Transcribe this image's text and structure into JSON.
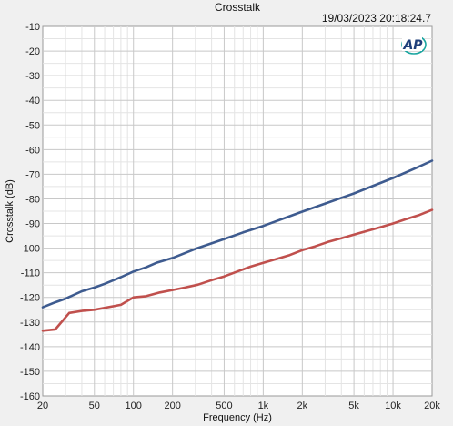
{
  "chart_data": {
    "type": "line",
    "title": "Crosstalk",
    "timestamp": "19/03/2023 20:18:24.7",
    "logo_text": "AP",
    "xlabel": "Frequency (Hz)",
    "ylabel": "Crosstalk (dB)",
    "x_scale": "log",
    "xlim": [
      20,
      20000
    ],
    "ylim": [
      -160,
      -10
    ],
    "x_ticks": [
      20,
      50,
      100,
      200,
      500,
      1000,
      2000,
      5000,
      10000,
      20000
    ],
    "x_tick_labels": [
      "20",
      "50",
      "100",
      "200",
      "500",
      "1k",
      "2k",
      "5k",
      "10k",
      "20k"
    ],
    "y_ticks": [
      -10,
      -20,
      -30,
      -40,
      -50,
      -60,
      -70,
      -80,
      -90,
      -100,
      -110,
      -120,
      -130,
      -140,
      -150,
      -160
    ],
    "y_tick_labels": [
      "-10",
      "-20",
      "-30",
      "-40",
      "-50",
      "-60",
      "-70",
      "-80",
      "-90",
      "-100",
      "-110",
      "-120",
      "-130",
      "-140",
      "-150",
      "-160"
    ],
    "grid": true,
    "series": [
      {
        "color": "#3e5b8f",
        "x": [
          20,
          25,
          30,
          40,
          50,
          60,
          80,
          100,
          125,
          150,
          200,
          300,
          500,
          700,
          1000,
          2000,
          5000,
          10000,
          15000,
          20000
        ],
        "y": [
          -124,
          -122,
          -120.5,
          -117.5,
          -116,
          -114.5,
          -111.8,
          -109.5,
          -107.8,
          -106,
          -104,
          -100.3,
          -96.3,
          -93.6,
          -91,
          -85.2,
          -77.8,
          -71.5,
          -67.5,
          -64.5
        ]
      },
      {
        "color": "#c0504d",
        "x": [
          20,
          25,
          32,
          40,
          50,
          63,
          80,
          100,
          125,
          160,
          200,
          250,
          315,
          400,
          500,
          630,
          800,
          1000,
          1250,
          1600,
          2000,
          2500,
          3150,
          4000,
          5000,
          6300,
          8000,
          10000,
          12500,
          16000,
          20000
        ],
        "y": [
          -133.5,
          -133,
          -126.3,
          -125.5,
          -125,
          -124,
          -123,
          -120,
          -119.5,
          -118,
          -117,
          -116,
          -114.8,
          -113,
          -111.5,
          -109.5,
          -107.5,
          -106,
          -104.5,
          -102.8,
          -100.8,
          -99.3,
          -97.5,
          -96,
          -94.5,
          -93,
          -91.5,
          -90,
          -88.3,
          -86.5,
          -84.5
        ]
      }
    ]
  }
}
